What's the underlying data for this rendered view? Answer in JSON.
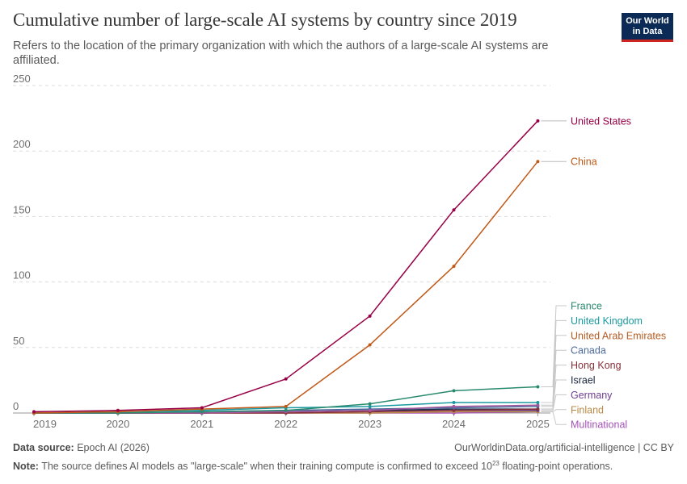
{
  "header": {
    "title": "Cumulative number of large-scale AI systems by country since 2019",
    "subtitle": "Refers to the location of the primary organization with which the authors of a large-scale AI systems are affiliated.",
    "logo_line1": "Our World",
    "logo_line2": "in Data",
    "logo_bg": "#0b2a55",
    "logo_accent": "#ce261e"
  },
  "footer": {
    "source_label": "Data source:",
    "source_value": "Epoch AI (2026)",
    "url": "OurWorldinData.org/artificial-intelligence | CC BY",
    "note_label": "Note:",
    "note_text_before": "The source defines AI models as \"large-scale\" when their training compute is confirmed to exceed 10",
    "note_superscript": "23",
    "note_text_after": " floating-point operations."
  },
  "chart_data": {
    "type": "line",
    "x": [
      2019,
      2020,
      2021,
      2022,
      2023,
      2024,
      2025
    ],
    "xticks": [
      "2019",
      "2020",
      "2021",
      "2022",
      "2023",
      "2024",
      "2025"
    ],
    "yticks": [
      0,
      50,
      100,
      150,
      200,
      250
    ],
    "ylim": [
      0,
      250
    ],
    "xlim": [
      2019,
      2025.15
    ],
    "grid": "horizontal dashed",
    "legend": "inline-right",
    "series": [
      {
        "name": "United States",
        "color": "#970046",
        "values": [
          1,
          2,
          4,
          26,
          74,
          155,
          223
        ]
      },
      {
        "name": "China",
        "color": "#c05917",
        "values": [
          0,
          1,
          3,
          5,
          52,
          112,
          192
        ]
      },
      {
        "name": "France",
        "color": "#2a8a6e",
        "values": [
          0,
          0,
          1,
          2,
          7,
          17,
          20
        ]
      },
      {
        "name": "United Kingdom",
        "color": "#1a9aa0",
        "values": [
          0,
          1,
          2,
          4,
          5,
          8,
          8
        ]
      },
      {
        "name": "United Arab Emirates",
        "color": "#a2559c",
        "values": [
          0,
          0,
          0,
          1,
          2,
          5,
          6
        ]
      },
      {
        "name": "Canada",
        "color": "#4c6a9c",
        "values": [
          0,
          0,
          1,
          2,
          3,
          4,
          5
        ]
      },
      {
        "name": "Hong Kong",
        "color": "#883039",
        "values": [
          0,
          0,
          0,
          0,
          1,
          2,
          3
        ]
      },
      {
        "name": "Israel",
        "color": "#1f2f4f",
        "values": [
          0,
          0,
          0,
          1,
          2,
          3,
          3
        ]
      },
      {
        "name": "Germany",
        "color": "#6d3e91",
        "values": [
          0,
          0,
          0,
          1,
          2,
          2,
          2
        ]
      },
      {
        "name": "Finland",
        "color": "#b88a47",
        "values": [
          0,
          0,
          0,
          0,
          0,
          1,
          1
        ]
      },
      {
        "name": "Multinational",
        "color": "#a652ba",
        "values": [
          0,
          0,
          0,
          0,
          0,
          0,
          1
        ]
      }
    ],
    "label_colors": {
      "United Arab Emirates": "#b55d23",
      "Israel": "#17223a"
    }
  }
}
